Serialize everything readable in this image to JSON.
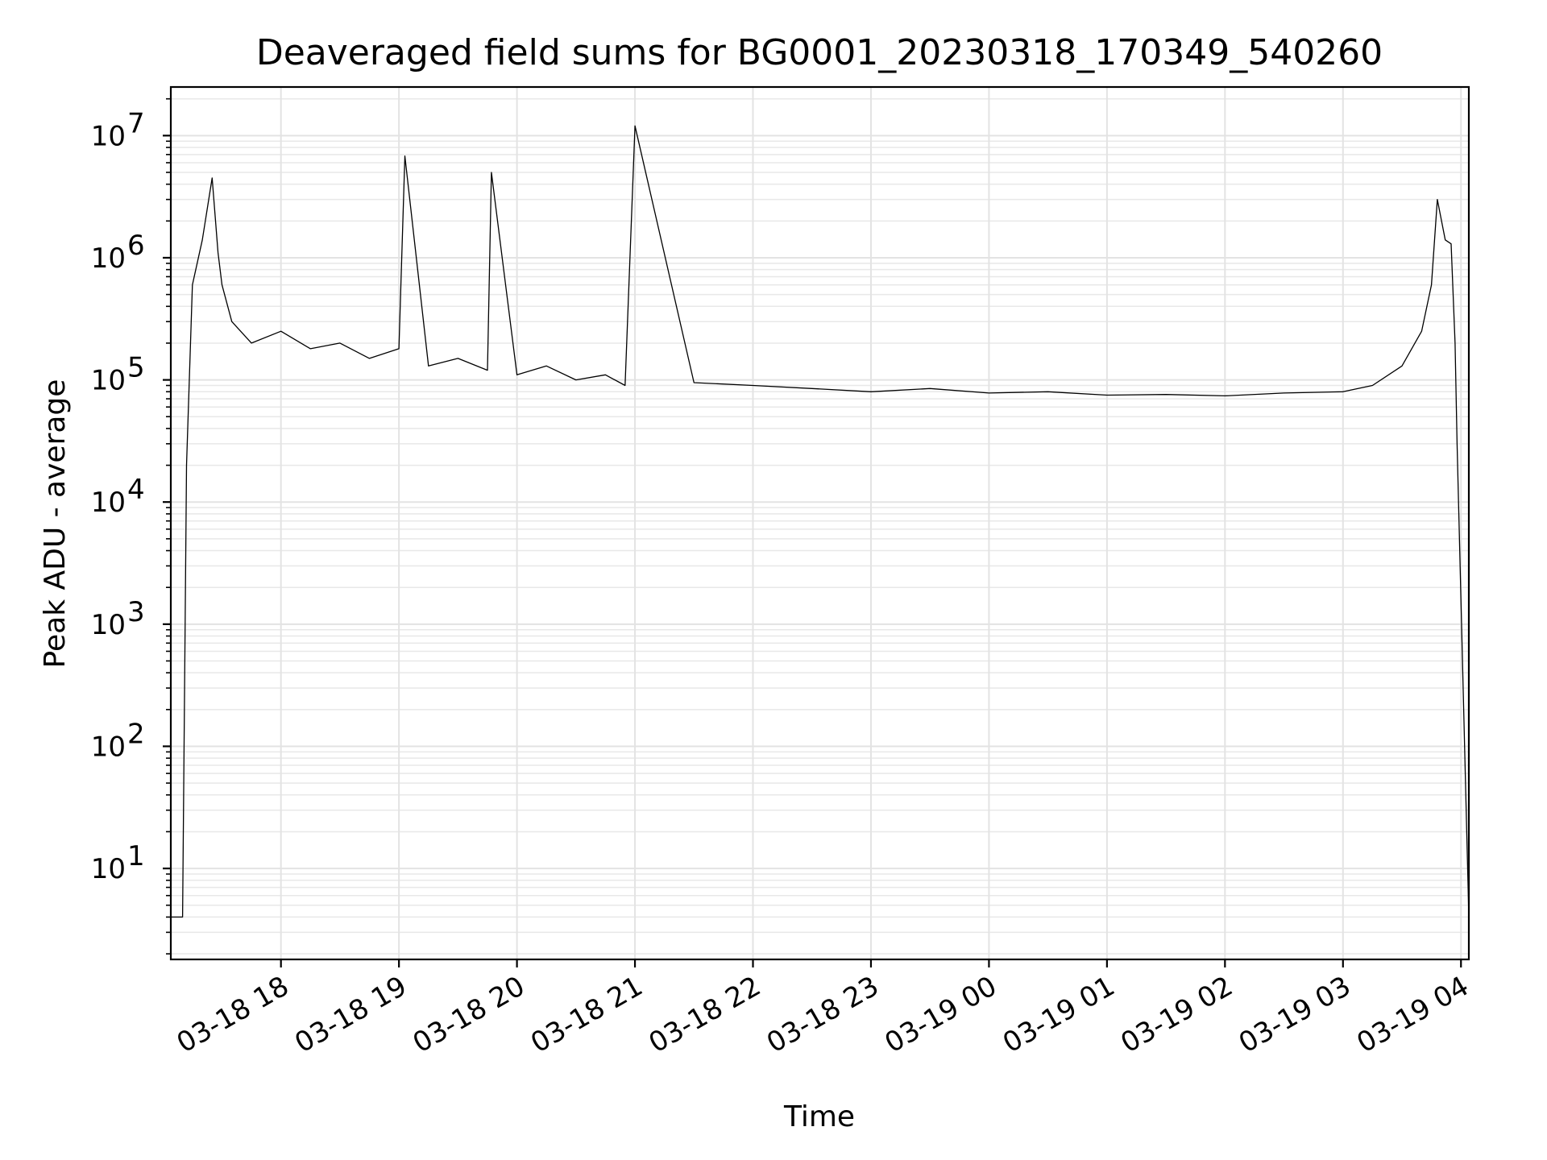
{
  "chart_data": {
    "type": "line",
    "title": "Deaveraged field sums for BG0001_20230318_170349_540260",
    "xlabel": "Time",
    "ylabel": "Peak ADU - average",
    "yscale": "log",
    "grid": true,
    "x_range": [
      "2023-03-18 17:04",
      "2023-03-19 04:04"
    ],
    "y_range": [
      1.8,
      25000000
    ],
    "x_ticks": [
      "03-18 18",
      "03-18 19",
      "03-18 20",
      "03-18 21",
      "03-18 22",
      "03-18 23",
      "03-19 00",
      "03-19 01",
      "03-19 02",
      "03-19 03",
      "03-19 04"
    ],
    "y_ticks": [
      {
        "base": "10",
        "exp": "1",
        "value": 10
      },
      {
        "base": "10",
        "exp": "2",
        "value": 100
      },
      {
        "base": "10",
        "exp": "3",
        "value": 1000
      },
      {
        "base": "10",
        "exp": "4",
        "value": 10000
      },
      {
        "base": "10",
        "exp": "5",
        "value": 100000
      },
      {
        "base": "10",
        "exp": "6",
        "value": 1000000
      },
      {
        "base": "10",
        "exp": "7",
        "value": 10000000
      }
    ],
    "series": [
      {
        "color": "#000000",
        "x": [
          "2023-03-18 17:04",
          "2023-03-18 17:06",
          "2023-03-18 17:10",
          "2023-03-18 17:12",
          "2023-03-18 17:15",
          "2023-03-18 17:20",
          "2023-03-18 17:25",
          "2023-03-18 17:28",
          "2023-03-18 17:30",
          "2023-03-18 17:35",
          "2023-03-18 17:45",
          "2023-03-18 18:00",
          "2023-03-18 18:15",
          "2023-03-18 18:30",
          "2023-03-18 18:45",
          "2023-03-18 19:00",
          "2023-03-18 19:03",
          "2023-03-18 19:15",
          "2023-03-18 19:30",
          "2023-03-18 19:45",
          "2023-03-18 19:47",
          "2023-03-18 20:00",
          "2023-03-18 20:15",
          "2023-03-18 20:30",
          "2023-03-18 20:45",
          "2023-03-18 20:55",
          "2023-03-18 21:00",
          "2023-03-18 21:30",
          "2023-03-18 22:00",
          "2023-03-18 22:30",
          "2023-03-18 23:00",
          "2023-03-18 23:30",
          "2023-03-19 00:00",
          "2023-03-19 00:30",
          "2023-03-19 01:00",
          "2023-03-19 01:30",
          "2023-03-19 02:00",
          "2023-03-19 02:30",
          "2023-03-19 03:00",
          "2023-03-19 03:15",
          "2023-03-19 03:30",
          "2023-03-19 03:40",
          "2023-03-19 03:45",
          "2023-03-19 03:48",
          "2023-03-19 03:52",
          "2023-03-19 03:55",
          "2023-03-19 03:57",
          "2023-03-19 03:58",
          "2023-03-19 04:04"
        ],
        "y": [
          4,
          4,
          4,
          20000,
          600000,
          1400000,
          4500000,
          1100000,
          600000,
          300000,
          200000,
          250000,
          180000,
          200000,
          150000,
          180000,
          6800000,
          130000,
          150000,
          120000,
          5000000,
          110000,
          130000,
          100000,
          110000,
          90000,
          12000000,
          95000,
          90000,
          85000,
          80000,
          85000,
          78000,
          80000,
          75000,
          76000,
          74000,
          78000,
          80000,
          90000,
          130000,
          250000,
          600000,
          3000000,
          1400000,
          1300000,
          200000,
          30000,
          4
        ]
      }
    ]
  }
}
